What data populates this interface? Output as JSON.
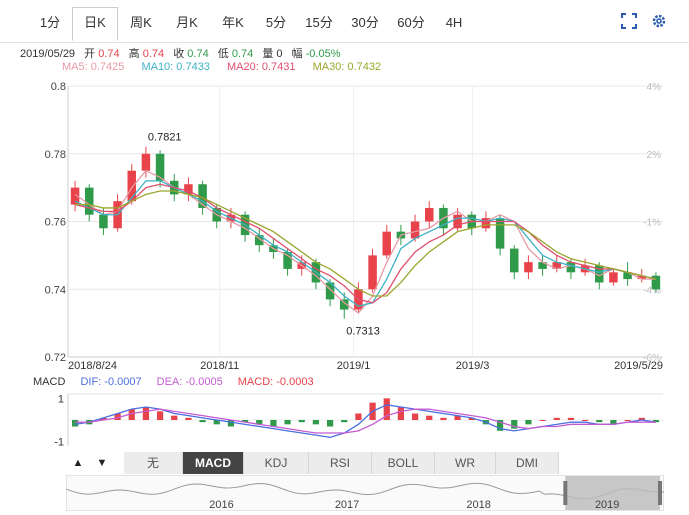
{
  "period_tabs": [
    {
      "label": "1分",
      "active": false
    },
    {
      "label": "日K",
      "active": true
    },
    {
      "label": "周K",
      "active": false
    },
    {
      "label": "月K",
      "active": false
    },
    {
      "label": "年K",
      "active": false
    },
    {
      "label": "5分",
      "active": false
    },
    {
      "label": "15分",
      "active": false
    },
    {
      "label": "30分",
      "active": false
    },
    {
      "label": "60分",
      "active": false
    },
    {
      "label": "4H",
      "active": false
    }
  ],
  "icons": {
    "fullscreen": "fullscreen-icon",
    "settings": "gear-icon",
    "up": "up-arrow-icon",
    "down": "down-arrow-icon"
  },
  "quote": {
    "date": "2019/05/29",
    "open_label": "开",
    "open": "0.74",
    "high_label": "高",
    "high": "0.74",
    "close_label": "收",
    "close": "0.74",
    "low_label": "低",
    "low": "0.74",
    "volume_label": "量",
    "volume": "0",
    "change_label": "幅",
    "change": "-0.05%"
  },
  "ma_legend": [
    {
      "label": "MA5: 0.7425",
      "color": "#e89aa6"
    },
    {
      "label": "MA10: 0.7433",
      "color": "#3fb1c6"
    },
    {
      "label": "MA20: 0.7431",
      "color": "#e0506e"
    },
    {
      "label": "MA30: 0.7432",
      "color": "#9aa62e"
    }
  ],
  "colors": {
    "up": "#e8424a",
    "down": "#2f9a4a",
    "ma5": "#e89aa6",
    "ma10": "#3fb1c6",
    "ma20": "#e0506e",
    "ma30": "#9aa62e",
    "dif": "#4a6fe0",
    "dea": "#c45bd2"
  },
  "chart_data": {
    "type": "candlestick",
    "y_ticks_left": [
      "0.8",
      "0.78",
      "0.76",
      "0.74",
      "0.72"
    ],
    "y_ticks_left_values": [
      0.8,
      0.78,
      0.76,
      0.74,
      0.72
    ],
    "ylim": [
      0.72,
      0.8
    ],
    "y_ticks_right": [
      "4%",
      "2%",
      "-1%",
      "-4%",
      "-6%"
    ],
    "x_ticks": [
      "2018/8/24",
      "2018/11",
      "2019/1",
      "2019/3",
      "2019/5/29"
    ],
    "annotations": [
      {
        "label": "0.7821",
        "value": 0.7821
      },
      {
        "label": "0.7313",
        "value": 0.7313
      }
    ],
    "series": [
      {
        "name": "MA5",
        "values": [
          0.768,
          0.765,
          0.762,
          0.763,
          0.77,
          0.775,
          0.773,
          0.77,
          0.768,
          0.765,
          0.762,
          0.76,
          0.758,
          0.755,
          0.752,
          0.75,
          0.747,
          0.744,
          0.74,
          0.736,
          0.733,
          0.738,
          0.748,
          0.756,
          0.757,
          0.758,
          0.761,
          0.763,
          0.76,
          0.76,
          0.762,
          0.76,
          0.752,
          0.748,
          0.746,
          0.747,
          0.746,
          0.744,
          0.746,
          0.745,
          0.743,
          0.743
        ]
      },
      {
        "name": "MA10",
        "values": [
          0.766,
          0.764,
          0.762,
          0.762,
          0.767,
          0.772,
          0.772,
          0.77,
          0.768,
          0.766,
          0.763,
          0.761,
          0.759,
          0.756,
          0.753,
          0.751,
          0.748,
          0.745,
          0.742,
          0.738,
          0.735,
          0.736,
          0.743,
          0.752,
          0.755,
          0.757,
          0.759,
          0.761,
          0.761,
          0.76,
          0.761,
          0.76,
          0.755,
          0.75,
          0.748,
          0.747,
          0.746,
          0.745,
          0.746,
          0.745,
          0.744,
          0.743
        ]
      },
      {
        "name": "MA20",
        "values": [
          0.765,
          0.764,
          0.763,
          0.763,
          0.766,
          0.77,
          0.771,
          0.77,
          0.769,
          0.767,
          0.764,
          0.762,
          0.76,
          0.758,
          0.755,
          0.752,
          0.749,
          0.746,
          0.744,
          0.741,
          0.737,
          0.736,
          0.739,
          0.746,
          0.751,
          0.754,
          0.756,
          0.759,
          0.76,
          0.76,
          0.76,
          0.76,
          0.757,
          0.753,
          0.75,
          0.748,
          0.747,
          0.746,
          0.746,
          0.745,
          0.744,
          0.743
        ]
      },
      {
        "name": "MA30",
        "values": [
          0.765,
          0.765,
          0.764,
          0.764,
          0.766,
          0.768,
          0.769,
          0.769,
          0.768,
          0.767,
          0.765,
          0.763,
          0.761,
          0.759,
          0.757,
          0.754,
          0.751,
          0.748,
          0.746,
          0.743,
          0.74,
          0.738,
          0.738,
          0.742,
          0.747,
          0.751,
          0.754,
          0.757,
          0.758,
          0.759,
          0.759,
          0.759,
          0.757,
          0.754,
          0.751,
          0.749,
          0.748,
          0.747,
          0.746,
          0.745,
          0.744,
          0.743
        ]
      }
    ],
    "candles": [
      [
        0.765,
        0.77,
        0.763,
        0.772
      ],
      [
        0.77,
        0.762,
        0.76,
        0.771
      ],
      [
        0.762,
        0.758,
        0.756,
        0.764
      ],
      [
        0.758,
        0.766,
        0.757,
        0.768
      ],
      [
        0.766,
        0.775,
        0.765,
        0.777
      ],
      [
        0.775,
        0.78,
        0.773,
        0.7821
      ],
      [
        0.78,
        0.772,
        0.77,
        0.781
      ],
      [
        0.772,
        0.768,
        0.766,
        0.774
      ],
      [
        0.768,
        0.771,
        0.766,
        0.773
      ],
      [
        0.771,
        0.764,
        0.762,
        0.772
      ],
      [
        0.764,
        0.76,
        0.758,
        0.765
      ],
      [
        0.76,
        0.762,
        0.758,
        0.764
      ],
      [
        0.762,
        0.756,
        0.754,
        0.763
      ],
      [
        0.756,
        0.753,
        0.751,
        0.758
      ],
      [
        0.753,
        0.751,
        0.749,
        0.755
      ],
      [
        0.751,
        0.746,
        0.744,
        0.752
      ],
      [
        0.746,
        0.748,
        0.744,
        0.75
      ],
      [
        0.748,
        0.742,
        0.74,
        0.749
      ],
      [
        0.742,
        0.737,
        0.735,
        0.743
      ],
      [
        0.737,
        0.734,
        0.7313,
        0.739
      ],
      [
        0.734,
        0.74,
        0.733,
        0.742
      ],
      [
        0.74,
        0.75,
        0.739,
        0.752
      ],
      [
        0.75,
        0.757,
        0.749,
        0.759
      ],
      [
        0.757,
        0.755,
        0.753,
        0.759
      ],
      [
        0.755,
        0.76,
        0.754,
        0.762
      ],
      [
        0.76,
        0.764,
        0.758,
        0.766
      ],
      [
        0.764,
        0.758,
        0.756,
        0.765
      ],
      [
        0.758,
        0.762,
        0.757,
        0.764
      ],
      [
        0.762,
        0.758,
        0.756,
        0.763
      ],
      [
        0.758,
        0.761,
        0.757,
        0.763
      ],
      [
        0.761,
        0.752,
        0.75,
        0.762
      ],
      [
        0.752,
        0.745,
        0.743,
        0.753
      ],
      [
        0.745,
        0.748,
        0.743,
        0.75
      ],
      [
        0.748,
        0.746,
        0.744,
        0.75
      ],
      [
        0.746,
        0.748,
        0.745,
        0.75
      ],
      [
        0.748,
        0.745,
        0.743,
        0.749
      ],
      [
        0.745,
        0.747,
        0.744,
        0.749
      ],
      [
        0.747,
        0.742,
        0.74,
        0.748
      ],
      [
        0.742,
        0.745,
        0.741,
        0.746
      ],
      [
        0.745,
        0.743,
        0.741,
        0.748
      ],
      [
        0.743,
        0.744,
        0.742,
        0.746
      ],
      [
        0.744,
        0.74,
        0.739,
        0.745
      ]
    ],
    "macd": {
      "y_ticks": [
        "1",
        "-1"
      ],
      "legend": {
        "title": "MACD",
        "dif_label": "DIF: -0.0007",
        "dea_label": "DEA: -0.0005",
        "macd_label": "MACD: -0.0003"
      },
      "hist": [
        -0.3,
        -0.2,
        0.1,
        0.3,
        0.5,
        0.6,
        0.4,
        0.2,
        0.1,
        -0.1,
        -0.2,
        -0.3,
        -0.1,
        -0.2,
        -0.3,
        -0.2,
        -0.1,
        -0.2,
        -0.3,
        -0.1,
        0.3,
        0.8,
        1.0,
        0.6,
        0.3,
        0.2,
        0.1,
        0.2,
        0.1,
        -0.2,
        -0.5,
        -0.4,
        -0.2,
        0.0,
        0.1,
        0.1,
        0.0,
        -0.1,
        -0.2,
        0.0,
        0.1,
        -0.1
      ],
      "dif": [
        -0.2,
        -0.1,
        0.1,
        0.3,
        0.5,
        0.6,
        0.5,
        0.3,
        0.2,
        0.1,
        0.0,
        -0.1,
        -0.2,
        -0.3,
        -0.4,
        -0.5,
        -0.6,
        -0.7,
        -0.8,
        -0.6,
        -0.2,
        0.4,
        0.7,
        0.6,
        0.5,
        0.4,
        0.3,
        0.2,
        0.1,
        -0.1,
        -0.4,
        -0.5,
        -0.4,
        -0.3,
        -0.2,
        -0.1,
        -0.1,
        -0.2,
        -0.2,
        -0.1,
        0.0,
        -0.1
      ],
      "dea": [
        -0.1,
        -0.1,
        0.0,
        0.1,
        0.3,
        0.4,
        0.5,
        0.4,
        0.3,
        0.2,
        0.1,
        0.0,
        -0.1,
        -0.2,
        -0.3,
        -0.4,
        -0.5,
        -0.6,
        -0.6,
        -0.6,
        -0.5,
        -0.2,
        0.2,
        0.4,
        0.5,
        0.5,
        0.4,
        0.3,
        0.2,
        0.1,
        -0.1,
        -0.3,
        -0.4,
        -0.3,
        -0.3,
        -0.2,
        -0.2,
        -0.2,
        -0.2,
        -0.1,
        -0.1,
        -0.1
      ]
    },
    "overview": {
      "x_ticks": [
        "2016",
        "2017",
        "2018",
        "2019"
      ]
    }
  },
  "indicators": [
    {
      "label": "无",
      "active": false
    },
    {
      "label": "MACD",
      "active": true
    },
    {
      "label": "KDJ",
      "active": false
    },
    {
      "label": "RSI",
      "active": false
    },
    {
      "label": "BOLL",
      "active": false
    },
    {
      "label": "WR",
      "active": false
    },
    {
      "label": "DMI",
      "active": false
    }
  ],
  "arrows": {
    "up": "▲",
    "down": "▼"
  }
}
